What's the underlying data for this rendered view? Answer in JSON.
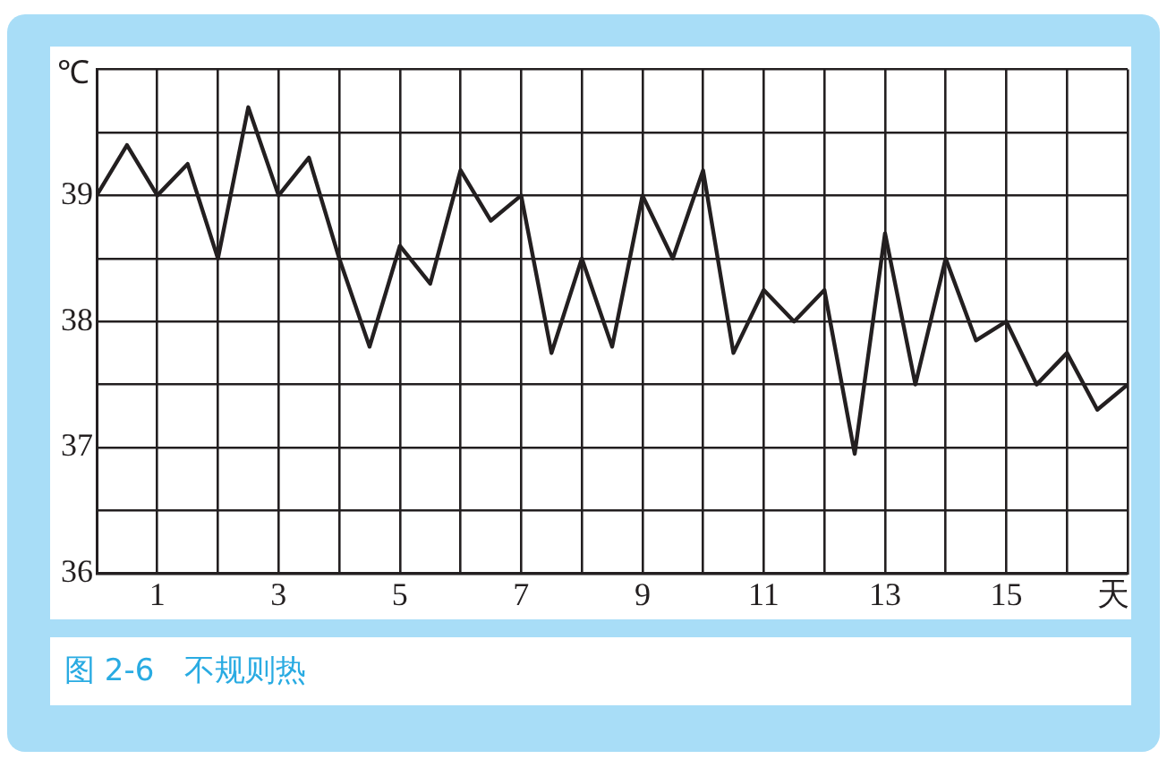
{
  "chart_data": {
    "type": "line",
    "title": "图 2-6　不规则热",
    "xlabel": "天",
    "ylabel": "℃",
    "x": [
      0,
      0.5,
      1,
      1.5,
      2,
      2.5,
      3,
      3.5,
      4,
      4.5,
      5,
      5.5,
      6,
      6.5,
      7,
      7.5,
      8,
      8.5,
      9,
      9.5,
      10,
      10.5,
      11,
      11.5,
      12,
      12.5,
      13,
      13.5,
      14,
      14.5,
      15,
      15.5,
      16,
      16.5,
      17
    ],
    "series": [
      {
        "color": "#231f20",
        "values": [
          39.0,
          39.4,
          39.0,
          39.25,
          38.5,
          39.7,
          39.0,
          39.3,
          38.5,
          37.8,
          38.6,
          38.3,
          39.2,
          38.8,
          39.0,
          37.75,
          38.5,
          37.8,
          39.0,
          38.5,
          39.2,
          37.75,
          38.25,
          38.0,
          38.25,
          36.95,
          38.7,
          37.5,
          38.5,
          37.85,
          38.0,
          37.5,
          37.75,
          37.3,
          37.5
        ]
      }
    ],
    "xlim": [
      0,
      17
    ],
    "xticks": [
      {
        "value": 0,
        "label": null
      },
      1,
      {
        "value": 2,
        "label": null
      },
      3,
      {
        "value": 4,
        "label": null
      },
      5,
      {
        "value": 6,
        "label": null
      },
      7,
      {
        "value": 8,
        "label": null
      },
      9,
      {
        "value": 10,
        "label": null
      },
      11,
      {
        "value": 12,
        "label": null
      },
      13,
      {
        "value": 14,
        "label": null
      },
      15,
      {
        "value": 16,
        "label": null
      },
      {
        "value": 17,
        "label": null
      }
    ],
    "ylim": [
      36,
      40
    ],
    "yticks": [
      36,
      {
        "value": 36.5,
        "label": null
      },
      37,
      {
        "value": 37.5,
        "label": null
      },
      38,
      {
        "value": 38.5,
        "label": null
      },
      39,
      {
        "value": 39.5,
        "label": null
      },
      {
        "value": 40,
        "label": null
      }
    ],
    "grid": true,
    "legend": false,
    "marker": "none",
    "line_style": "solid"
  }
}
